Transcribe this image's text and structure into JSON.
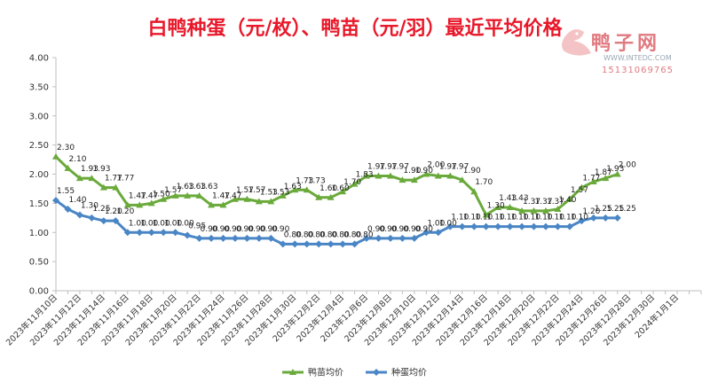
{
  "chart_data": {
    "type": "line",
    "title": "白鸭种蛋（元/枚）、鸭苗（元/羽）最近平均价格",
    "ylim": [
      0,
      4
    ],
    "yticks": [
      "0.00",
      "0.50",
      "1.00",
      "1.50",
      "2.00",
      "2.50",
      "3.00",
      "3.50",
      "4.00"
    ],
    "grid": false,
    "legend_position": "bottom",
    "x_tick_labels": [
      "2023年11月10日",
      "2023年11月12日",
      "2023年11月14日",
      "2023年11月16日",
      "2023年11月18日",
      "2023年11月20日",
      "2023年11月22日",
      "2023年11月24日",
      "2023年11月26日",
      "2023年11月28日",
      "2023年11月30日",
      "2023年12月2日",
      "2023年12月4日",
      "2023年12月6日",
      "2023年12月8日",
      "2023年12月10日",
      "2023年12月12日",
      "2023年12月14日",
      "2023年12月16日",
      "2023年12月18日",
      "2023年12月20日",
      "2023年12月22日",
      "2023年12月24日",
      "2023年12月26日",
      "2023年12月28日",
      "2023年12月30日",
      "2024年1月1日"
    ],
    "x": [
      "2023年11月10日",
      "2023年11月11日",
      "2023年11月12日",
      "2023年11月13日",
      "2023年11月14日",
      "2023年11月15日",
      "2023年11月16日",
      "2023年11月17日",
      "2023年11月18日",
      "2023年11月19日",
      "2023年11月20日",
      "2023年11月21日",
      "2023年11月22日",
      "2023年11月23日",
      "2023年11月24日",
      "2023年11月25日",
      "2023年11月26日",
      "2023年11月27日",
      "2023年11月28日",
      "2023年11月29日",
      "2023年11月30日",
      "2023年12月1日",
      "2023年12月2日",
      "2023年12月3日",
      "2023年12月4日",
      "2023年12月5日",
      "2023年12月6日",
      "2023年12月7日",
      "2023年12月8日",
      "2023年12月9日",
      "2023年12月10日",
      "2023年12月11日",
      "2023年12月12日",
      "2023年12月13日",
      "2023年12月14日",
      "2023年12月15日",
      "2023年12月16日",
      "2023年12月17日",
      "2023年12月18日",
      "2023年12月19日",
      "2023年12月20日",
      "2023年12月21日",
      "2023年12月22日",
      "2023年12月23日",
      "2023年12月24日",
      "2023年12月25日",
      "2023年12月26日",
      "2023年12月27日"
    ],
    "series": [
      {
        "name": "鸭苗均价",
        "color": "#6aaa3b",
        "values": [
          2.3,
          2.1,
          1.93,
          1.93,
          1.77,
          1.77,
          1.47,
          1.47,
          1.5,
          1.57,
          1.63,
          1.63,
          1.63,
          1.47,
          1.47,
          1.57,
          1.57,
          1.53,
          1.53,
          1.63,
          1.73,
          1.73,
          1.6,
          1.6,
          1.7,
          1.83,
          1.97,
          1.97,
          1.97,
          1.9,
          1.9,
          2.0,
          1.97,
          1.97,
          1.9,
          1.7,
          1.3,
          1.43,
          1.43,
          1.37,
          1.37,
          1.37,
          1.4,
          1.57,
          1.77,
          1.87,
          1.93,
          2.0
        ]
      },
      {
        "name": "种蛋均价",
        "color": "#4a86c5",
        "values": [
          1.55,
          1.4,
          1.3,
          1.25,
          1.2,
          1.2,
          1.0,
          1.0,
          1.0,
          1.0,
          1.0,
          0.95,
          0.9,
          0.9,
          0.9,
          0.9,
          0.9,
          0.9,
          0.9,
          0.8,
          0.8,
          0.8,
          0.8,
          0.8,
          0.8,
          0.8,
          0.9,
          0.9,
          0.9,
          0.9,
          0.9,
          1.0,
          1.0,
          1.1,
          1.1,
          1.1,
          1.1,
          1.1,
          1.1,
          1.1,
          1.1,
          1.1,
          1.1,
          1.1,
          1.2,
          1.25,
          1.25,
          1.25
        ]
      }
    ]
  },
  "watermark": {
    "brand": "鸭子网",
    "url": "WWW.INTEDC.COM",
    "phone": "15131069765"
  }
}
